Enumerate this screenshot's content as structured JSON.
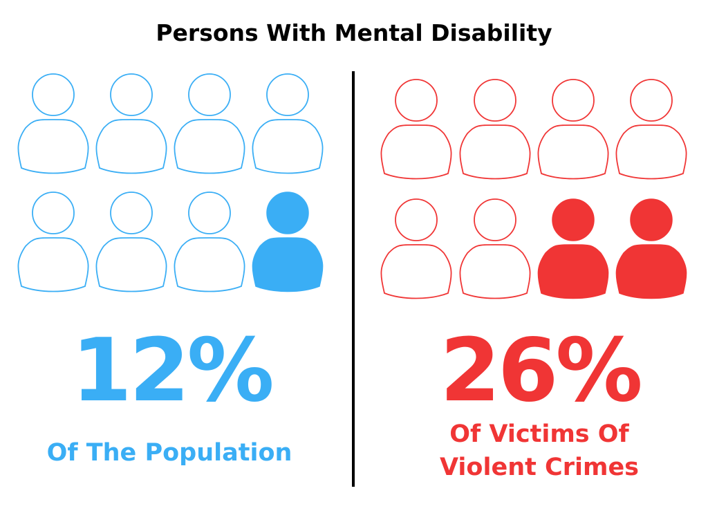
{
  "title": "Persons With Mental Disability",
  "colors": {
    "left_accent": "#3aaef5",
    "right_accent": "#f03535",
    "divider": "#000000",
    "background": "#ffffff"
  },
  "left_panel": {
    "percentage": "12%",
    "caption": "Of The Population",
    "icon_name": "person-icon",
    "total_figures": 8,
    "filled_figures": 1
  },
  "right_panel": {
    "percentage": "26%",
    "caption_line1": "Of Victims Of",
    "caption_line2": "Violent Crimes",
    "icon_name": "person-icon",
    "total_figures": 8,
    "filled_figures": 2
  }
}
